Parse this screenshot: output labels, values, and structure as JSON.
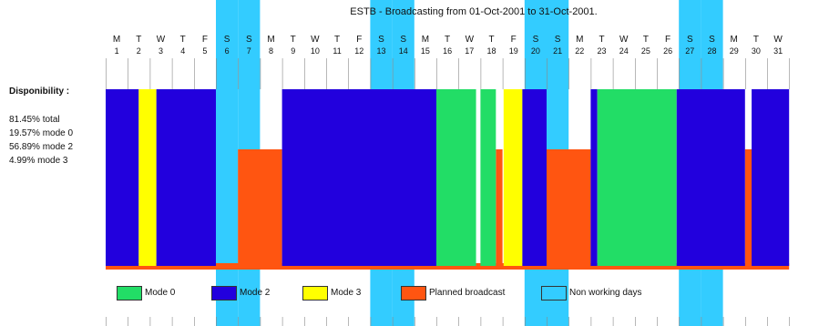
{
  "title": "ESTB - Broadcasting from 01-Oct-2001 to 31-Oct-2001.",
  "stats": {
    "heading": "Disponibility :",
    "lines": [
      "81.45% total",
      "19.57% mode 0",
      "56.89% mode 2",
      "4.99% mode 3"
    ]
  },
  "colors": {
    "mode0": "#22dd66",
    "mode2": "#2200dd",
    "mode3": "#ffff00",
    "planned": "#ff5511",
    "nonworking": "#33ccff",
    "gridline": "#888888"
  },
  "chart_data": {
    "type": "bar",
    "days": [
      {
        "dow": "M",
        "day": "1"
      },
      {
        "dow": "T",
        "day": "2"
      },
      {
        "dow": "W",
        "day": "3"
      },
      {
        "dow": "T",
        "day": "4"
      },
      {
        "dow": "F",
        "day": "5"
      },
      {
        "dow": "S",
        "day": "6"
      },
      {
        "dow": "S",
        "day": "7"
      },
      {
        "dow": "M",
        "day": "8"
      },
      {
        "dow": "T",
        "day": "9"
      },
      {
        "dow": "W",
        "day": "10"
      },
      {
        "dow": "T",
        "day": "11"
      },
      {
        "dow": "F",
        "day": "12"
      },
      {
        "dow": "S",
        "day": "13"
      },
      {
        "dow": "S",
        "day": "14"
      },
      {
        "dow": "M",
        "day": "15"
      },
      {
        "dow": "T",
        "day": "16"
      },
      {
        "dow": "W",
        "day": "17"
      },
      {
        "dow": "T",
        "day": "18"
      },
      {
        "dow": "F",
        "day": "19"
      },
      {
        "dow": "S",
        "day": "20"
      },
      {
        "dow": "S",
        "day": "21"
      },
      {
        "dow": "M",
        "day": "22"
      },
      {
        "dow": "T",
        "day": "23"
      },
      {
        "dow": "W",
        "day": "24"
      },
      {
        "dow": "T",
        "day": "25"
      },
      {
        "dow": "F",
        "day": "26"
      },
      {
        "dow": "S",
        "day": "27"
      },
      {
        "dow": "S",
        "day": "28"
      },
      {
        "dow": "M",
        "day": "29"
      },
      {
        "dow": "T",
        "day": "30"
      },
      {
        "dow": "W",
        "day": "31"
      }
    ],
    "non_working_days": [
      6,
      7,
      13,
      14,
      20,
      21,
      27,
      28
    ],
    "planned_segments": [
      {
        "start": 0.0,
        "end": 31.0,
        "level": "base"
      },
      {
        "start": 6.0,
        "end": 8.0,
        "level": "mid"
      },
      {
        "start": 17.7,
        "end": 18.0,
        "level": "mid"
      },
      {
        "start": 20.0,
        "end": 22.0,
        "level": "mid"
      },
      {
        "start": 29.0,
        "end": 29.4,
        "level": "mid"
      }
    ],
    "broadcast_segments": [
      {
        "start": 0.0,
        "end": 1.5,
        "mode": "mode2"
      },
      {
        "start": 1.5,
        "end": 2.3,
        "mode": "mode3"
      },
      {
        "start": 2.3,
        "end": 5.0,
        "mode": "mode2"
      },
      {
        "start": 8.0,
        "end": 15.0,
        "mode": "mode2"
      },
      {
        "start": 15.0,
        "end": 16.8,
        "mode": "mode0"
      },
      {
        "start": 17.0,
        "end": 17.7,
        "mode": "mode0"
      },
      {
        "start": 18.05,
        "end": 18.9,
        "mode": "mode3"
      },
      {
        "start": 18.9,
        "end": 20.0,
        "mode": "mode2"
      },
      {
        "start": 22.0,
        "end": 22.3,
        "mode": "mode2"
      },
      {
        "start": 22.3,
        "end": 25.9,
        "mode": "mode0"
      },
      {
        "start": 25.9,
        "end": 29.0,
        "mode": "mode2"
      },
      {
        "start": 29.3,
        "end": 31.0,
        "mode": "mode2"
      }
    ],
    "legend": [
      {
        "key": "mode0",
        "label": "Mode 0"
      },
      {
        "key": "mode2",
        "label": "Mode 2"
      },
      {
        "key": "mode3",
        "label": "Mode 3"
      },
      {
        "key": "planned",
        "label": "Planned broadcast"
      },
      {
        "key": "nonworking",
        "label": "Non working days"
      }
    ]
  }
}
